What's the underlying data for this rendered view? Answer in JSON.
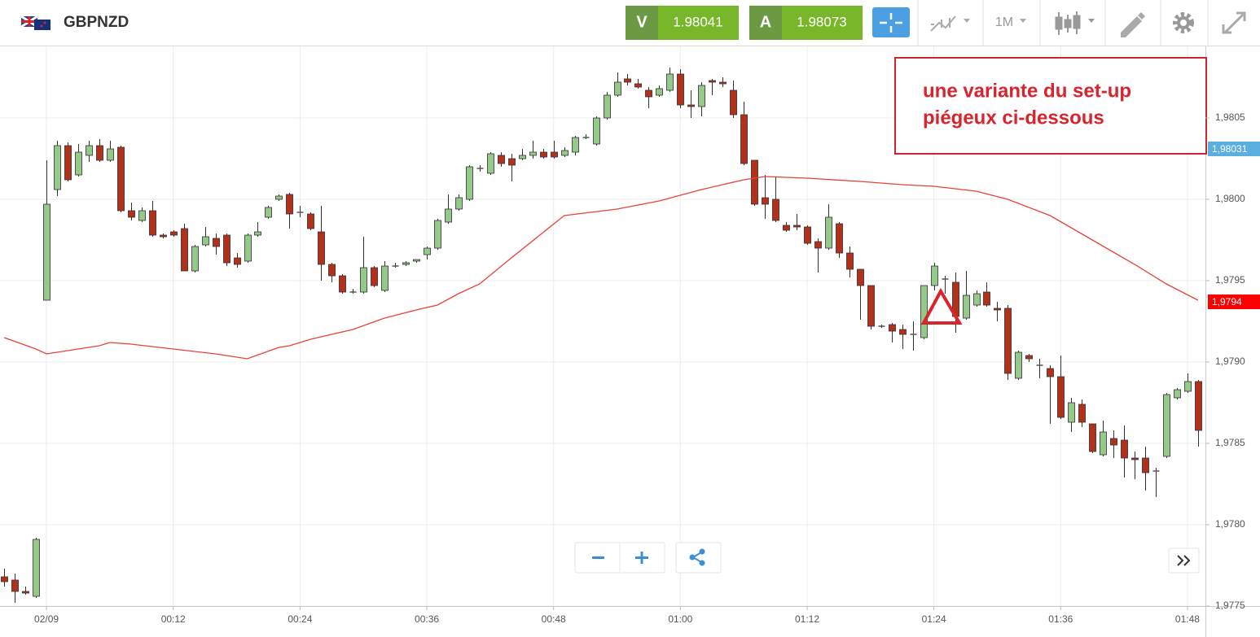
{
  "toolbar": {
    "symbol": "GBPNZD",
    "bid_label": "V",
    "bid": 1.98041,
    "ask_label": "A",
    "ask": 1.98073,
    "timeframe": "1M"
  },
  "chart_data": {
    "type": "candlestick",
    "annotation": [
      "une variante du set-up",
      "piégeux ci-dessous"
    ],
    "xlim": [
      -4.4,
      109.7
    ],
    "xticks": [
      {
        "value": 0,
        "label": "02/09"
      },
      {
        "value": 12,
        "label": "00:12"
      },
      {
        "value": 24,
        "label": "00:24"
      },
      {
        "value": 36,
        "label": "00:36"
      },
      {
        "value": 48,
        "label": "00:48"
      },
      {
        "value": 60,
        "label": "01:00"
      },
      {
        "value": 72,
        "label": "01:12"
      },
      {
        "value": 84,
        "label": "01:24"
      },
      {
        "value": 96,
        "label": "01:36"
      },
      {
        "value": 108,
        "label": "01:48"
      }
    ],
    "ylim": [
      1.9775,
      1.98094
    ],
    "yticks": [
      {
        "value": 1.9775,
        "label": "1,9775"
      },
      {
        "value": 1.978,
        "label": "1,9780"
      },
      {
        "value": 1.9785,
        "label": "1,9785"
      },
      {
        "value": 1.979,
        "label": "1,9790"
      },
      {
        "value": 1.9795,
        "label": "1,9795"
      },
      {
        "value": 1.98,
        "label": "1,9800"
      },
      {
        "value": 1.9805,
        "label": "1,9805"
      }
    ],
    "grid": true,
    "series": [
      {
        "type": "candlestick",
        "up_color": "#94c98a",
        "down_color": "#b3301a",
        "doji_color": "#555555",
        "x": [
          -4,
          -3,
          -2,
          -1,
          0,
          1,
          2,
          3,
          4,
          5,
          6,
          7,
          8,
          9,
          10,
          11,
          12,
          13,
          14,
          15,
          16,
          17,
          18,
          19,
          20,
          21,
          22,
          23,
          24,
          25,
          26,
          27,
          28,
          29,
          30,
          31,
          32,
          33,
          34,
          35,
          36,
          37,
          38,
          39,
          40,
          41,
          42,
          43,
          44,
          45,
          46,
          47,
          48,
          49,
          50,
          51,
          52,
          53,
          54,
          55,
          56,
          57,
          58,
          59,
          60,
          61,
          62,
          63,
          64,
          65,
          66,
          67,
          68,
          69,
          70,
          71,
          72,
          73,
          74,
          75,
          76,
          77,
          78,
          79,
          80,
          81,
          82,
          83,
          84,
          85,
          86,
          87,
          88,
          89,
          90,
          91,
          92,
          93,
          94,
          95,
          96,
          97,
          98,
          99,
          100,
          101,
          102,
          103,
          104,
          105,
          106,
          107,
          108,
          109
        ],
        "open": [
          1.97768,
          1.97766,
          1.97759,
          1.97756,
          1.97938,
          1.98006,
          1.98033,
          1.98015,
          1.98027,
          1.98033,
          1.98024,
          1.98032,
          1.97993,
          1.97987,
          1.97993,
          1.97978,
          1.9798,
          1.97982,
          1.97956,
          1.97972,
          1.97976,
          1.97978,
          1.97964,
          1.97962,
          1.97978,
          1.97989,
          1.98,
          1.98003,
          1.97992,
          1.97991,
          1.9798,
          1.9796,
          1.97953,
          1.97943,
          1.97943,
          1.97958,
          1.97944,
          1.97959,
          1.9796,
          1.97962,
          1.97966,
          1.9797,
          1.97986,
          1.97994,
          1.98,
          1.98019,
          1.98016,
          1.98027,
          1.98025,
          1.98025,
          1.98027,
          1.98029,
          1.98029,
          1.98027,
          1.98029,
          1.98038,
          1.98034,
          1.9805,
          1.98064,
          1.98074,
          1.98071,
          1.98067,
          1.98064,
          1.98067,
          1.98077,
          1.98058,
          1.98057,
          1.98073,
          1.98072,
          1.98067,
          1.98052,
          1.98024,
          1.98001,
          1.98,
          1.97984,
          1.97984,
          1.97983,
          1.97974,
          1.9797,
          1.97985,
          1.97967,
          1.97957,
          1.97947,
          1.97922,
          1.97923,
          1.9792,
          1.97917,
          1.97915,
          1.97947,
          1.97951,
          1.97949,
          1.97927,
          1.97935,
          1.97943,
          1.97933,
          1.97933,
          1.9789,
          1.97904,
          1.97898,
          1.97896,
          1.97891,
          1.97863,
          1.97874,
          1.97862,
          1.97843,
          1.97853,
          1.97852,
          1.97841,
          1.97841,
          1.97833,
          1.97842,
          1.97878,
          1.97882,
          1.97888
        ],
        "high": [
          1.97773,
          1.9777,
          1.97762,
          1.97792,
          1.98024,
          1.98036,
          1.98035,
          1.98034,
          1.98036,
          1.98037,
          1.98036,
          1.98033,
          1.97998,
          1.97995,
          1.97999,
          1.97979,
          1.97981,
          1.97985,
          1.97972,
          1.97983,
          1.97979,
          1.97979,
          1.97967,
          1.97979,
          1.97986,
          1.97996,
          1.98003,
          1.98004,
          1.97996,
          1.97992,
          1.97996,
          1.97961,
          1.97954,
          1.97945,
          1.97977,
          1.97959,
          1.97962,
          1.97961,
          1.97962,
          1.97963,
          1.97971,
          1.97988,
          1.98003,
          1.98003,
          1.98021,
          1.98021,
          1.98029,
          1.98029,
          1.98028,
          1.98031,
          1.98036,
          1.98031,
          1.98036,
          1.98032,
          1.98039,
          1.9804,
          1.98051,
          1.98066,
          1.98078,
          1.98077,
          1.98074,
          1.98069,
          1.9807,
          1.98081,
          1.9808,
          1.98067,
          1.98072,
          1.98074,
          1.98075,
          1.98073,
          1.9806,
          1.98024,
          1.98015,
          1.98014,
          1.97986,
          1.97991,
          1.97984,
          1.97976,
          1.97997,
          1.97986,
          1.97971,
          1.97957,
          1.97947,
          1.97923,
          1.97924,
          1.97923,
          1.97925,
          1.97947,
          1.97961,
          1.97953,
          1.97955,
          1.97956,
          1.97944,
          1.97949,
          1.97937,
          1.97935,
          1.97907,
          1.97905,
          1.97902,
          1.97898,
          1.97904,
          1.97878,
          1.97877,
          1.97862,
          1.97864,
          1.97858,
          1.97861,
          1.97845,
          1.97848,
          1.97835,
          1.97881,
          1.97884,
          1.97893,
          1.97889
        ],
        "low": [
          1.97762,
          1.97752,
          1.97757,
          1.97755,
          1.97938,
          1.98002,
          1.98011,
          1.98014,
          1.98023,
          1.98023,
          1.98023,
          1.97992,
          1.97987,
          1.97986,
          1.97977,
          1.97976,
          1.97977,
          1.97956,
          1.97955,
          1.97971,
          1.97966,
          1.97959,
          1.97958,
          1.97961,
          1.97977,
          1.97988,
          1.97999,
          1.97982,
          1.97989,
          1.97981,
          1.9795,
          1.97949,
          1.97942,
          1.97942,
          1.97942,
          1.97946,
          1.97943,
          1.97958,
          1.97959,
          1.97961,
          1.97963,
          1.97969,
          1.97985,
          1.97993,
          1.97999,
          1.98017,
          1.98015,
          1.9802,
          1.98011,
          1.98024,
          1.98025,
          1.98025,
          1.98025,
          1.98026,
          1.98027,
          1.98037,
          1.98033,
          1.98049,
          1.98063,
          1.9807,
          1.98068,
          1.98056,
          1.98063,
          1.98066,
          1.98056,
          1.9805,
          1.98051,
          1.98064,
          1.98069,
          1.9805,
          1.98021,
          1.97996,
          1.97988,
          1.97986,
          1.9798,
          1.97981,
          1.97972,
          1.97955,
          1.97969,
          1.97964,
          1.97952,
          1.97926,
          1.9792,
          1.97921,
          1.97912,
          1.97908,
          1.97907,
          1.97914,
          1.97944,
          1.97942,
          1.97918,
          1.97926,
          1.97934,
          1.97934,
          1.97925,
          1.97889,
          1.97889,
          1.979,
          1.9789,
          1.97862,
          1.97865,
          1.97857,
          1.9786,
          1.97844,
          1.97842,
          1.97841,
          1.97829,
          1.97828,
          1.97821,
          1.97817,
          1.97841,
          1.97877,
          1.97881,
          1.97848
        ],
        "close": [
          1.97765,
          1.97759,
          1.97758,
          1.97791,
          1.97997,
          1.98033,
          1.98012,
          1.98029,
          1.98033,
          1.98024,
          1.98031,
          1.97993,
          1.97989,
          1.97993,
          1.97978,
          1.97977,
          1.97978,
          1.97956,
          1.97971,
          1.97977,
          1.97971,
          1.97961,
          1.9796,
          1.97978,
          1.9798,
          1.97995,
          1.98002,
          1.97991,
          1.97992,
          1.97982,
          1.9796,
          1.97953,
          1.97943,
          1.97943,
          1.97958,
          1.97947,
          1.97959,
          1.97959,
          1.97961,
          1.97963,
          1.9797,
          1.97987,
          1.97994,
          1.98001,
          1.9802,
          1.98019,
          1.98028,
          1.98022,
          1.98021,
          1.98027,
          1.98029,
          1.98026,
          1.98026,
          1.9803,
          1.98038,
          1.98038,
          1.9805,
          1.98064,
          1.98072,
          1.98072,
          1.98069,
          1.98063,
          1.98068,
          1.98077,
          1.98058,
          1.98057,
          1.9807,
          1.98072,
          1.98071,
          1.98052,
          1.98022,
          1.97997,
          1.97997,
          1.97987,
          1.97981,
          1.97983,
          1.97973,
          1.9797,
          1.97989,
          1.97967,
          1.97957,
          1.97947,
          1.97922,
          1.97922,
          1.97919,
          1.97917,
          1.97917,
          1.97947,
          1.97959,
          1.97951,
          1.97928,
          1.97941,
          1.97942,
          1.97935,
          1.97932,
          1.97893,
          1.97906,
          1.97902,
          1.97898,
          1.97891,
          1.97866,
          1.97875,
          1.97863,
          1.97845,
          1.97857,
          1.97849,
          1.97841,
          1.9784,
          1.97832,
          1.97833,
          1.9788,
          1.97883,
          1.97888,
          1.97858
        ]
      },
      {
        "type": "line",
        "color": "#e6423a",
        "x": [
          -4,
          -1,
          0,
          2,
          5,
          6,
          8,
          12,
          16,
          19,
          22,
          23,
          25,
          27,
          29,
          32,
          35,
          37,
          39,
          41,
          44,
          49,
          54,
          58,
          62,
          66,
          68,
          72,
          77,
          81,
          84,
          88,
          91,
          95,
          99,
          103,
          106,
          109
        ],
        "values": [
          1.97915,
          1.97908,
          1.97905,
          1.97907,
          1.9791,
          1.97912,
          1.97911,
          1.97908,
          1.97905,
          1.97902,
          1.97909,
          1.9791,
          1.97914,
          1.97917,
          1.9792,
          1.97927,
          1.97932,
          1.97935,
          1.97942,
          1.97948,
          1.97964,
          1.9799,
          1.97994,
          1.97999,
          1.98006,
          1.98012,
          1.98014,
          1.98013,
          1.98011,
          1.98009,
          1.98008,
          1.98005,
          1.98,
          1.9799,
          1.97975,
          1.9796,
          1.97948,
          1.97938
        ]
      }
    ],
    "price_markers": [
      {
        "value": 1.98031,
        "label": "1,98031",
        "color": "#5aaee0"
      },
      {
        "value": 1.97937,
        "label": "1,9794",
        "color": "#ff0000"
      }
    ]
  }
}
